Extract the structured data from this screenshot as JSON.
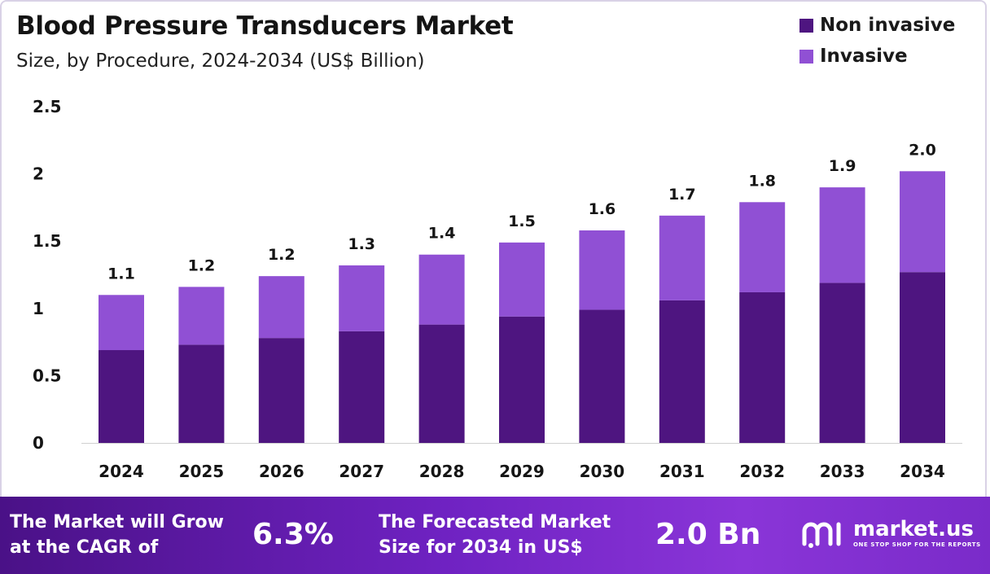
{
  "header": {
    "title": "Blood Pressure Transducers Market",
    "subtitle": "Size, by Procedure, 2024-2034 (US$ Billion)"
  },
  "colors": {
    "non_invasive": "#4e1580",
    "invasive": "#9050d4"
  },
  "chart_data": {
    "type": "bar",
    "stacked": true,
    "categories": [
      "2024",
      "2025",
      "2026",
      "2027",
      "2028",
      "2029",
      "2030",
      "2031",
      "2032",
      "2033",
      "2034"
    ],
    "series": [
      {
        "name": "Non invasive",
        "values": [
          0.69,
          0.73,
          0.78,
          0.83,
          0.88,
          0.94,
          0.99,
          1.06,
          1.12,
          1.19,
          1.27
        ]
      },
      {
        "name": "Invasive",
        "values": [
          0.41,
          0.43,
          0.46,
          0.49,
          0.52,
          0.55,
          0.59,
          0.63,
          0.67,
          0.71,
          0.75
        ]
      }
    ],
    "totals_labels": [
      "1.1",
      "1.2",
      "1.2",
      "1.3",
      "1.4",
      "1.5",
      "1.6",
      "1.7",
      "1.8",
      "1.9",
      "2.0"
    ],
    "y_ticks": [
      "0",
      "0.5",
      "1",
      "1.5",
      "2",
      "2.5"
    ],
    "ylim": [
      0,
      2.5
    ],
    "legend_position": "top-right",
    "grid": false
  },
  "footer": {
    "cagr_text_line1": "The Market will Grow",
    "cagr_text_line2": "at the CAGR of",
    "cagr_value": "6.3%",
    "forecast_text_line1": "The Forecasted Market",
    "forecast_text_line2": "Size for 2034 in US$",
    "forecast_value": "2.0 Bn",
    "brand_name": "market.us",
    "brand_tagline": "ONE STOP SHOP FOR THE REPORTS"
  }
}
